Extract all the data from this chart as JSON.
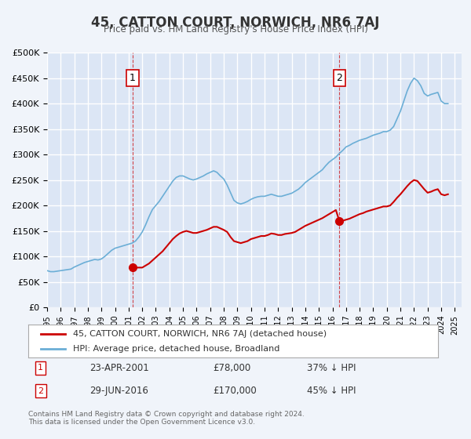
{
  "title": "45, CATTON COURT, NORWICH, NR6 7AJ",
  "subtitle": "Price paid vs. HM Land Registry's House Price Index (HPI)",
  "ylabel": "",
  "background_color": "#f0f4fa",
  "plot_bg_color": "#dce6f5",
  "grid_color": "#ffffff",
  "red_line_color": "#cc0000",
  "blue_line_color": "#6baed6",
  "ylim": [
    0,
    500000
  ],
  "yticks": [
    0,
    50000,
    100000,
    150000,
    200000,
    250000,
    300000,
    350000,
    400000,
    450000,
    500000
  ],
  "ytick_labels": [
    "£0",
    "£50K",
    "£100K",
    "£150K",
    "£200K",
    "£250K",
    "£300K",
    "£350K",
    "£400K",
    "£450K",
    "£500K"
  ],
  "xmin": 1995.0,
  "xmax": 2025.5,
  "annotation1": {
    "x": 2001.3,
    "label": "1",
    "date": "23-APR-2001",
    "price": "£78,000",
    "pct": "37% ↓ HPI"
  },
  "annotation2": {
    "x": 2016.5,
    "label": "2",
    "date": "29-JUN-2016",
    "price": "£170,000",
    "pct": "45% ↓ HPI"
  },
  "sale1_x": 2001.3,
  "sale1_y": 78000,
  "sale2_x": 2016.5,
  "sale2_y": 170000,
  "legend_label_red": "45, CATTON COURT, NORWICH, NR6 7AJ (detached house)",
  "legend_label_blue": "HPI: Average price, detached house, Broadland",
  "footer": "Contains HM Land Registry data © Crown copyright and database right 2024.\nThis data is licensed under the Open Government Licence v3.0.",
  "hpi_data": {
    "years": [
      1995.0,
      1995.25,
      1995.5,
      1995.75,
      1996.0,
      1996.25,
      1996.5,
      1996.75,
      1997.0,
      1997.25,
      1997.5,
      1997.75,
      1998.0,
      1998.25,
      1998.5,
      1998.75,
      1999.0,
      1999.25,
      1999.5,
      1999.75,
      2000.0,
      2000.25,
      2000.5,
      2000.75,
      2001.0,
      2001.25,
      2001.5,
      2001.75,
      2002.0,
      2002.25,
      2002.5,
      2002.75,
      2003.0,
      2003.25,
      2003.5,
      2003.75,
      2004.0,
      2004.25,
      2004.5,
      2004.75,
      2005.0,
      2005.25,
      2005.5,
      2005.75,
      2006.0,
      2006.25,
      2006.5,
      2006.75,
      2007.0,
      2007.25,
      2007.5,
      2007.75,
      2008.0,
      2008.25,
      2008.5,
      2008.75,
      2009.0,
      2009.25,
      2009.5,
      2009.75,
      2010.0,
      2010.25,
      2010.5,
      2010.75,
      2011.0,
      2011.25,
      2011.5,
      2011.75,
      2012.0,
      2012.25,
      2012.5,
      2012.75,
      2013.0,
      2013.25,
      2013.5,
      2013.75,
      2014.0,
      2014.25,
      2014.5,
      2014.75,
      2015.0,
      2015.25,
      2015.5,
      2015.75,
      2016.0,
      2016.25,
      2016.5,
      2016.75,
      2017.0,
      2017.25,
      2017.5,
      2017.75,
      2018.0,
      2018.25,
      2018.5,
      2018.75,
      2019.0,
      2019.25,
      2019.5,
      2019.75,
      2020.0,
      2020.25,
      2020.5,
      2020.75,
      2021.0,
      2021.25,
      2021.5,
      2021.75,
      2022.0,
      2022.25,
      2022.5,
      2022.75,
      2023.0,
      2023.25,
      2023.5,
      2023.75,
      2024.0,
      2024.25,
      2024.5
    ],
    "values": [
      72000,
      70000,
      70000,
      71000,
      72000,
      73000,
      74000,
      75000,
      79000,
      82000,
      85000,
      88000,
      90000,
      92000,
      94000,
      93000,
      95000,
      100000,
      106000,
      112000,
      116000,
      118000,
      120000,
      122000,
      124000,
      126000,
      130000,
      138000,
      148000,
      162000,
      178000,
      192000,
      200000,
      208000,
      218000,
      228000,
      238000,
      248000,
      255000,
      258000,
      258000,
      255000,
      252000,
      250000,
      252000,
      255000,
      258000,
      262000,
      265000,
      268000,
      265000,
      258000,
      252000,
      240000,
      225000,
      210000,
      205000,
      203000,
      205000,
      208000,
      212000,
      215000,
      217000,
      218000,
      218000,
      220000,
      222000,
      220000,
      218000,
      218000,
      220000,
      222000,
      224000,
      228000,
      232000,
      238000,
      245000,
      250000,
      255000,
      260000,
      265000,
      270000,
      278000,
      285000,
      290000,
      295000,
      302000,
      308000,
      315000,
      318000,
      322000,
      325000,
      328000,
      330000,
      332000,
      335000,
      338000,
      340000,
      342000,
      345000,
      345000,
      348000,
      355000,
      370000,
      385000,
      405000,
      425000,
      440000,
      450000,
      445000,
      435000,
      420000,
      415000,
      418000,
      420000,
      422000,
      405000,
      400000,
      400000
    ]
  },
  "price_paid_data": {
    "years": [
      1995.0,
      1995.25,
      1995.5,
      1995.75,
      1996.0,
      1996.25,
      1996.5,
      1996.75,
      1997.0,
      1997.25,
      1997.5,
      1997.75,
      1998.0,
      1998.25,
      1998.5,
      1998.75,
      1999.0,
      1999.25,
      1999.5,
      1999.75,
      2000.0,
      2000.25,
      2000.5,
      2000.75,
      2001.0,
      2001.25,
      2001.5,
      2001.75,
      2002.0,
      2002.25,
      2002.5,
      2002.75,
      2003.0,
      2003.25,
      2003.5,
      2003.75,
      2004.0,
      2004.25,
      2004.5,
      2004.75,
      2005.0,
      2005.25,
      2005.5,
      2005.75,
      2006.0,
      2006.25,
      2006.5,
      2006.75,
      2007.0,
      2007.25,
      2007.5,
      2007.75,
      2008.0,
      2008.25,
      2008.5,
      2008.75,
      2009.0,
      2009.25,
      2009.5,
      2009.75,
      2010.0,
      2010.25,
      2010.5,
      2010.75,
      2011.0,
      2011.25,
      2011.5,
      2011.75,
      2012.0,
      2012.25,
      2012.5,
      2012.75,
      2013.0,
      2013.25,
      2013.5,
      2013.75,
      2014.0,
      2014.25,
      2014.5,
      2014.75,
      2015.0,
      2015.25,
      2015.5,
      2015.75,
      2016.0,
      2016.25,
      2016.5,
      2016.75,
      2017.0,
      2017.25,
      2017.5,
      2017.75,
      2018.0,
      2018.25,
      2018.5,
      2018.75,
      2019.0,
      2019.25,
      2019.5,
      2019.75,
      2020.0,
      2020.25,
      2020.5,
      2020.75,
      2021.0,
      2021.25,
      2021.5,
      2021.75,
      2022.0,
      2022.25,
      2022.5,
      2022.75,
      2023.0,
      2023.25,
      2023.5,
      2023.75,
      2024.0,
      2024.25,
      2024.5
    ],
    "values": [
      null,
      null,
      null,
      null,
      null,
      null,
      null,
      null,
      null,
      null,
      null,
      null,
      null,
      null,
      null,
      null,
      null,
      null,
      null,
      null,
      null,
      null,
      null,
      null,
      null,
      78000,
      78000,
      78000,
      78000,
      82000,
      86000,
      92000,
      98000,
      104000,
      110000,
      118000,
      126000,
      134000,
      140000,
      145000,
      148000,
      150000,
      148000,
      146000,
      146000,
      148000,
      150000,
      152000,
      155000,
      158000,
      158000,
      155000,
      152000,
      148000,
      138000,
      130000,
      128000,
      126000,
      128000,
      130000,
      134000,
      136000,
      138000,
      140000,
      140000,
      142000,
      145000,
      144000,
      142000,
      142000,
      144000,
      145000,
      146000,
      148000,
      152000,
      156000,
      160000,
      163000,
      166000,
      169000,
      172000,
      175000,
      179000,
      183000,
      187000,
      191000,
      170000,
      170000,
      172000,
      174000,
      177000,
      180000,
      183000,
      185000,
      188000,
      190000,
      192000,
      194000,
      196000,
      198000,
      198000,
      200000,
      207000,
      215000,
      222000,
      230000,
      238000,
      245000,
      250000,
      248000,
      240000,
      232000,
      225000,
      227000,
      230000,
      232000,
      222000,
      220000,
      222000
    ]
  }
}
